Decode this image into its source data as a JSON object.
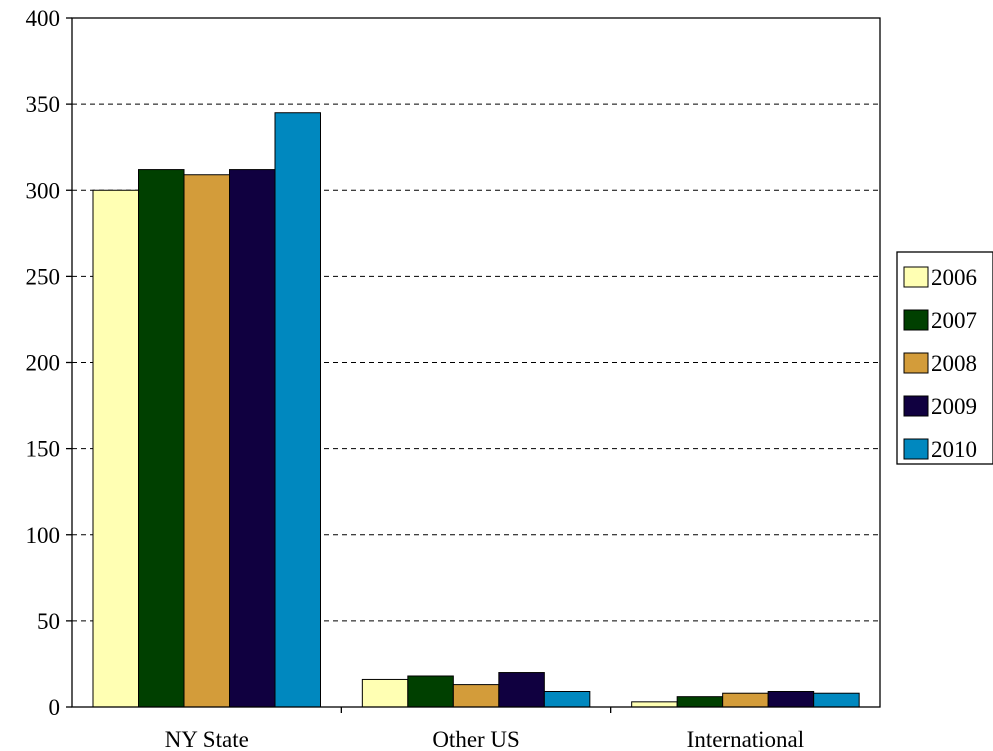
{
  "chart_data": {
    "type": "bar",
    "categories": [
      "NY State",
      "Other US",
      "International"
    ],
    "series": [
      {
        "name": "2006",
        "color": "#FFFFB3",
        "values": [
          300,
          16,
          3
        ]
      },
      {
        "name": "2007",
        "color": "#004000",
        "values": [
          312,
          18,
          6
        ]
      },
      {
        "name": "2008",
        "color": "#D39C3A",
        "values": [
          309,
          13,
          8
        ]
      },
      {
        "name": "2009",
        "color": "#100040",
        "values": [
          312,
          20,
          9
        ]
      },
      {
        "name": "2010",
        "color": "#0088BF",
        "values": [
          345,
          9,
          8
        ]
      }
    ],
    "ylim": [
      0,
      400
    ],
    "yticks": [
      0,
      50,
      100,
      150,
      200,
      250,
      300,
      350,
      400
    ],
    "grid": "dashed horizontal",
    "legend": "right",
    "title": "",
    "xlabel": "",
    "ylabel": ""
  }
}
